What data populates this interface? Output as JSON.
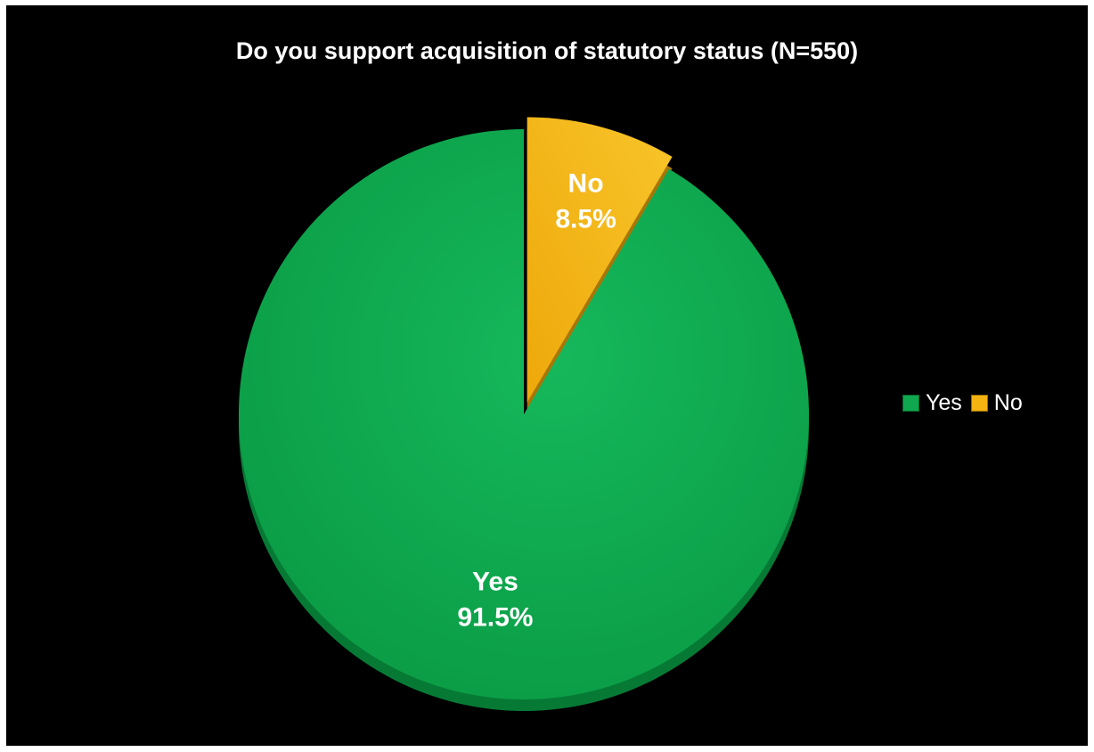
{
  "chart_data": {
    "type": "pie",
    "title": "Do you support acquisition of statutory status (N=550)",
    "slices": [
      {
        "label": "Yes",
        "value": 91.5,
        "value_label": "91.5%",
        "color": "#0fa84f"
      },
      {
        "label": "No",
        "value": 8.5,
        "value_label": "8.5%",
        "color": "#f5b311"
      }
    ],
    "legend": {
      "position": "right",
      "entries": [
        "Yes",
        "No"
      ]
    },
    "exploded": [
      "No"
    ],
    "background": "#000000"
  }
}
